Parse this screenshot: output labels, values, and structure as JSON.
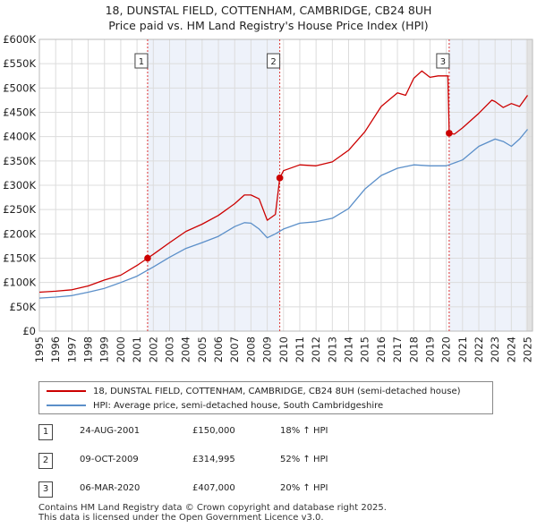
{
  "chart_data": {
    "type": "line",
    "title": "18, DUNSTAL FIELD, COTTENHAM, CAMBRIDGE, CB24 8UH",
    "subtitle": "Price paid vs. HM Land Registry's House Price Index (HPI)",
    "xlabel": "",
    "ylabel": "",
    "xlim": [
      1995,
      2025.3
    ],
    "ylim": [
      0,
      600000
    ],
    "x_ticks": [
      1995,
      1996,
      1997,
      1998,
      1999,
      2000,
      2001,
      2002,
      2003,
      2004,
      2005,
      2006,
      2007,
      2008,
      2009,
      2010,
      2011,
      2012,
      2013,
      2014,
      2015,
      2016,
      2017,
      2018,
      2019,
      2020,
      2021,
      2022,
      2023,
      2024,
      2025
    ],
    "y_ticks": [
      {
        "value": 0,
        "label": "£0"
      },
      {
        "value": 50000,
        "label": "£50K"
      },
      {
        "value": 100000,
        "label": "£100K"
      },
      {
        "value": 150000,
        "label": "£150K"
      },
      {
        "value": 200000,
        "label": "£200K"
      },
      {
        "value": 250000,
        "label": "£250K"
      },
      {
        "value": 300000,
        "label": "£300K"
      },
      {
        "value": 350000,
        "label": "£350K"
      },
      {
        "value": 400000,
        "label": "£400K"
      },
      {
        "value": 450000,
        "label": "£450K"
      },
      {
        "value": 500000,
        "label": "£500K"
      },
      {
        "value": 550000,
        "label": "£550K"
      },
      {
        "value": 600000,
        "label": "£600K"
      }
    ],
    "grid": true,
    "series": [
      {
        "name": "18, DUNSTAL FIELD, COTTENHAM, CAMBRIDGE, CB24 8UH (semi-detached house)",
        "color": "#cc0000",
        "x": [
          1995,
          1996,
          1997,
          1998,
          1999,
          2000,
          2001,
          2001.65,
          2002,
          2003,
          2004,
          2005,
          2006,
          2007,
          2007.6,
          2008,
          2008.5,
          2009,
          2009.5,
          2009.77,
          2010,
          2011,
          2012,
          2013,
          2014,
          2015,
          2016,
          2017,
          2017.5,
          2018,
          2018.5,
          2019,
          2019.5,
          2020.1,
          2020.18,
          2020.5,
          2021,
          2022,
          2022.8,
          2023,
          2023.5,
          2024,
          2024.5,
          2025
        ],
        "y": [
          80000,
          82000,
          85000,
          93000,
          105000,
          115000,
          135000,
          150000,
          158000,
          182000,
          205000,
          220000,
          238000,
          262000,
          280000,
          280000,
          272000,
          228000,
          240000,
          314995,
          330000,
          342000,
          340000,
          348000,
          372000,
          410000,
          462000,
          490000,
          485000,
          520000,
          535000,
          522000,
          525000,
          525000,
          407000,
          405000,
          418000,
          448000,
          475000,
          472000,
          460000,
          468000,
          462000,
          485000
        ]
      },
      {
        "name": "HPI: Average price, semi-detached house, South Cambridgeshire",
        "color": "#5b8fc9",
        "x": [
          1995,
          1996,
          1997,
          1998,
          1999,
          2000,
          2001,
          2002,
          2003,
          2004,
          2005,
          2006,
          2007,
          2007.6,
          2008,
          2008.5,
          2009,
          2009.5,
          2010,
          2011,
          2012,
          2013,
          2014,
          2015,
          2016,
          2017,
          2018,
          2019,
          2020,
          2021,
          2022,
          2023,
          2023.5,
          2024,
          2024.5,
          2025
        ],
        "y": [
          68000,
          70000,
          73000,
          80000,
          88000,
          100000,
          113000,
          132000,
          152000,
          170000,
          182000,
          195000,
          215000,
          223000,
          222000,
          210000,
          192000,
          200000,
          210000,
          222000,
          225000,
          232000,
          252000,
          292000,
          320000,
          335000,
          342000,
          340000,
          340000,
          352000,
          380000,
          395000,
          390000,
          380000,
          395000,
          415000
        ]
      }
    ],
    "sale_markers": [
      {
        "label": "1",
        "x": 2001.65,
        "y": 150000
      },
      {
        "label": "2",
        "x": 2009.77,
        "y": 314995
      },
      {
        "label": "3",
        "x": 2020.18,
        "y": 407000
      }
    ]
  },
  "legend": {
    "property_label": "18, DUNSTAL FIELD, COTTENHAM, CAMBRIDGE, CB24 8UH (semi-detached house)",
    "hpi_label": "HPI: Average price, semi-detached house, South Cambridgeshire",
    "property_color": "#cc0000",
    "hpi_color": "#5b8fc9"
  },
  "sales": [
    {
      "num": "1",
      "date": "24-AUG-2001",
      "price": "£150,000",
      "hpi": "18% ↑ HPI"
    },
    {
      "num": "2",
      "date": "09-OCT-2009",
      "price": "£314,995",
      "hpi": "52% ↑ HPI"
    },
    {
      "num": "3",
      "date": "06-MAR-2020",
      "price": "£407,000",
      "hpi": "20% ↑ HPI"
    }
  ],
  "footer": {
    "line1": "Contains HM Land Registry data © Crown copyright and database right 2025.",
    "line2": "This data is licensed under the Open Government Licence v3.0."
  }
}
